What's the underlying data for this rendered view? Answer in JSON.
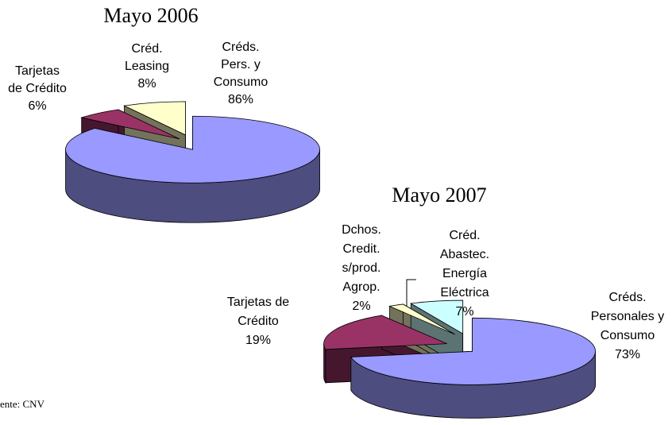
{
  "chart_data": [
    {
      "type": "pie",
      "title": "Mayo 2006",
      "categories": [
        "Créds.\nPers. y\nConsumo",
        "Tarjetas\nde Crédito",
        "Créd.\nLeasing"
      ],
      "values": [
        86,
        6,
        8
      ],
      "value_labels": [
        "86%",
        "6%",
        "8%"
      ],
      "colors": [
        "#9999ff",
        "#993366",
        "#ffffcc"
      ]
    },
    {
      "type": "pie",
      "title": "Mayo 2007",
      "categories": [
        "Créds.\nPersonales y\nConsumo",
        "Tarjetas de\nCrédito",
        "Dchos.\nCredit.\ns/prod.\nAgrop.",
        "Créd.\nAbastec.\nEnergía\nEléctrica"
      ],
      "values": [
        73,
        19,
        2,
        7
      ],
      "value_labels": [
        "73%",
        "19%",
        "2%",
        "7%"
      ],
      "colors": [
        "#9999ff",
        "#993366",
        "#ffffcc",
        "#ccffff"
      ]
    }
  ],
  "footer": "ente: CNV"
}
